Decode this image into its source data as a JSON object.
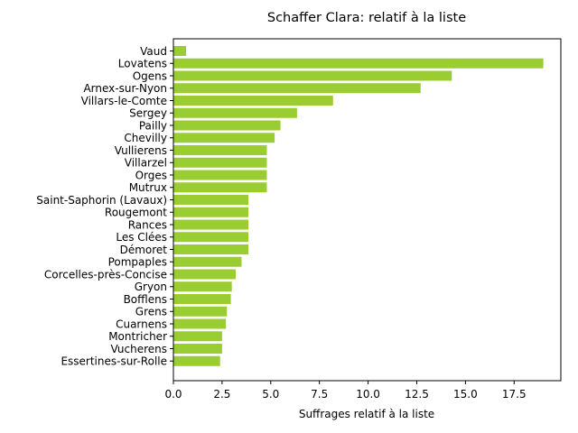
{
  "chart_data": {
    "type": "bar",
    "orientation": "horizontal",
    "title": "Schaffer Clara: relatif à la liste",
    "xlabel": "Suffrages relatif à la liste",
    "ylabel": "",
    "xlim": [
      0,
      19.9
    ],
    "xticks": [
      0.0,
      2.5,
      5.0,
      7.5,
      10.0,
      12.5,
      15.0,
      17.5
    ],
    "xtick_labels": [
      "0.0",
      "2.5",
      "5.0",
      "7.5",
      "10.0",
      "12.5",
      "15.0",
      "17.5"
    ],
    "bar_color": "#9acd32",
    "grid": false,
    "categories": [
      "Vaud",
      "Lovatens",
      "Ogens",
      "Arnex-sur-Nyon",
      "Villars-le-Comte",
      "Sergey",
      "Pailly",
      "Chevilly",
      "Vullierens",
      "Villarzel",
      "Orges",
      "Mutrux",
      "Saint-Saphorin (Lavaux)",
      "Rougemont",
      "Rances",
      "Les Clées",
      "Démoret",
      "Pompaples",
      "Corcelles-près-Concise",
      "Gryon",
      "Bofflens",
      "Grens",
      "Cuarnens",
      "Montricher",
      "Vucherens",
      "Essertines-sur-Rolle"
    ],
    "values": [
      0.65,
      19.0,
      14.3,
      12.7,
      8.2,
      6.35,
      5.5,
      5.2,
      4.8,
      4.8,
      4.8,
      4.8,
      3.85,
      3.85,
      3.85,
      3.85,
      3.85,
      3.5,
      3.2,
      3.0,
      2.95,
      2.75,
      2.7,
      2.5,
      2.5,
      2.4
    ]
  }
}
